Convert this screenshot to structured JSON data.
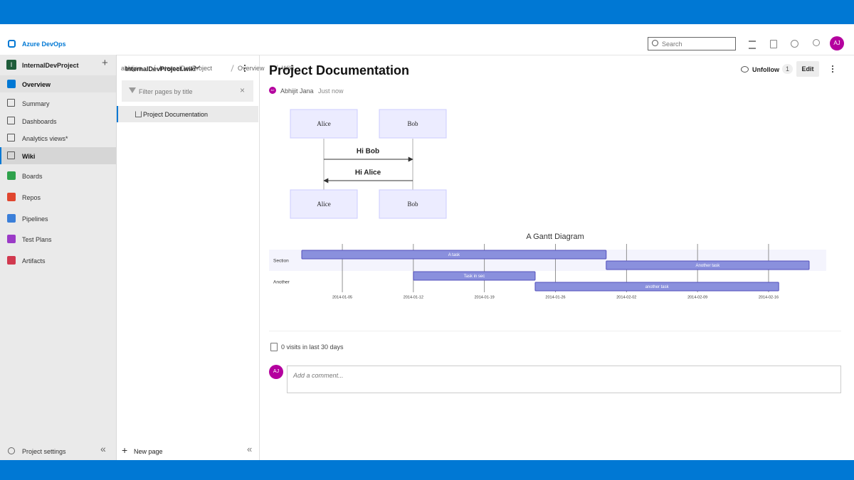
{
  "header": {
    "brand": "Azure DevOps",
    "breadcrumb": [
      "abhijan",
      "InternalDevProject",
      "Overview",
      "Wiki"
    ],
    "search": "Search",
    "avatar": "AJ"
  },
  "sidebar": {
    "project_initial": "I",
    "project": "InternalDevProject",
    "items": [
      "Overview",
      "Summary",
      "Dashboards",
      "Analytics views*",
      "Wiki",
      "Boards",
      "Repos",
      "Pipelines",
      "Test Plans",
      "Artifacts"
    ],
    "settings": "Project settings"
  },
  "wiki_tree": {
    "wiki_name": "InternalDevProject.wiki",
    "filter": "Filter pages by title",
    "pages": [
      "Project Documentation"
    ],
    "new_page": "New page"
  },
  "page": {
    "title": "Project Documentation",
    "author_initials": "AJ",
    "author": "Abhijit Jana",
    "time": "Just now",
    "unfollow": "Unfollow",
    "followers": "1",
    "edit": "Edit",
    "visits": "0 visits in last 30 days",
    "comment_initials": "AJ",
    "comment_placeholder": "Add a comment..."
  },
  "sequence_diagram": {
    "participants": [
      "Alice",
      "Bob"
    ],
    "messages": [
      "Hi Bob",
      "Hi Alice"
    ]
  },
  "chart_data": {
    "type": "gantt",
    "title": "A Gantt Diagram",
    "sections": [
      {
        "name": "Section",
        "tasks": [
          {
            "name": "A task",
            "start": "2014-01-01",
            "end": "2014-01-31"
          },
          {
            "name": "Another task",
            "start": "2014-01-31",
            "end": "2014-02-20"
          }
        ]
      },
      {
        "name": "Another",
        "tasks": [
          {
            "name": "Task in sec",
            "start": "2014-01-12",
            "end": "2014-01-24"
          },
          {
            "name": "another task",
            "start": "2014-01-24",
            "end": "2014-02-17"
          }
        ]
      }
    ],
    "xlim": [
      "2014-01-01",
      "2014-02-20"
    ],
    "xticks": [
      "2014-01-05",
      "2014-01-12",
      "2014-01-19",
      "2014-01-26",
      "2014-02-02",
      "2014-02-09",
      "2014-02-16"
    ]
  }
}
